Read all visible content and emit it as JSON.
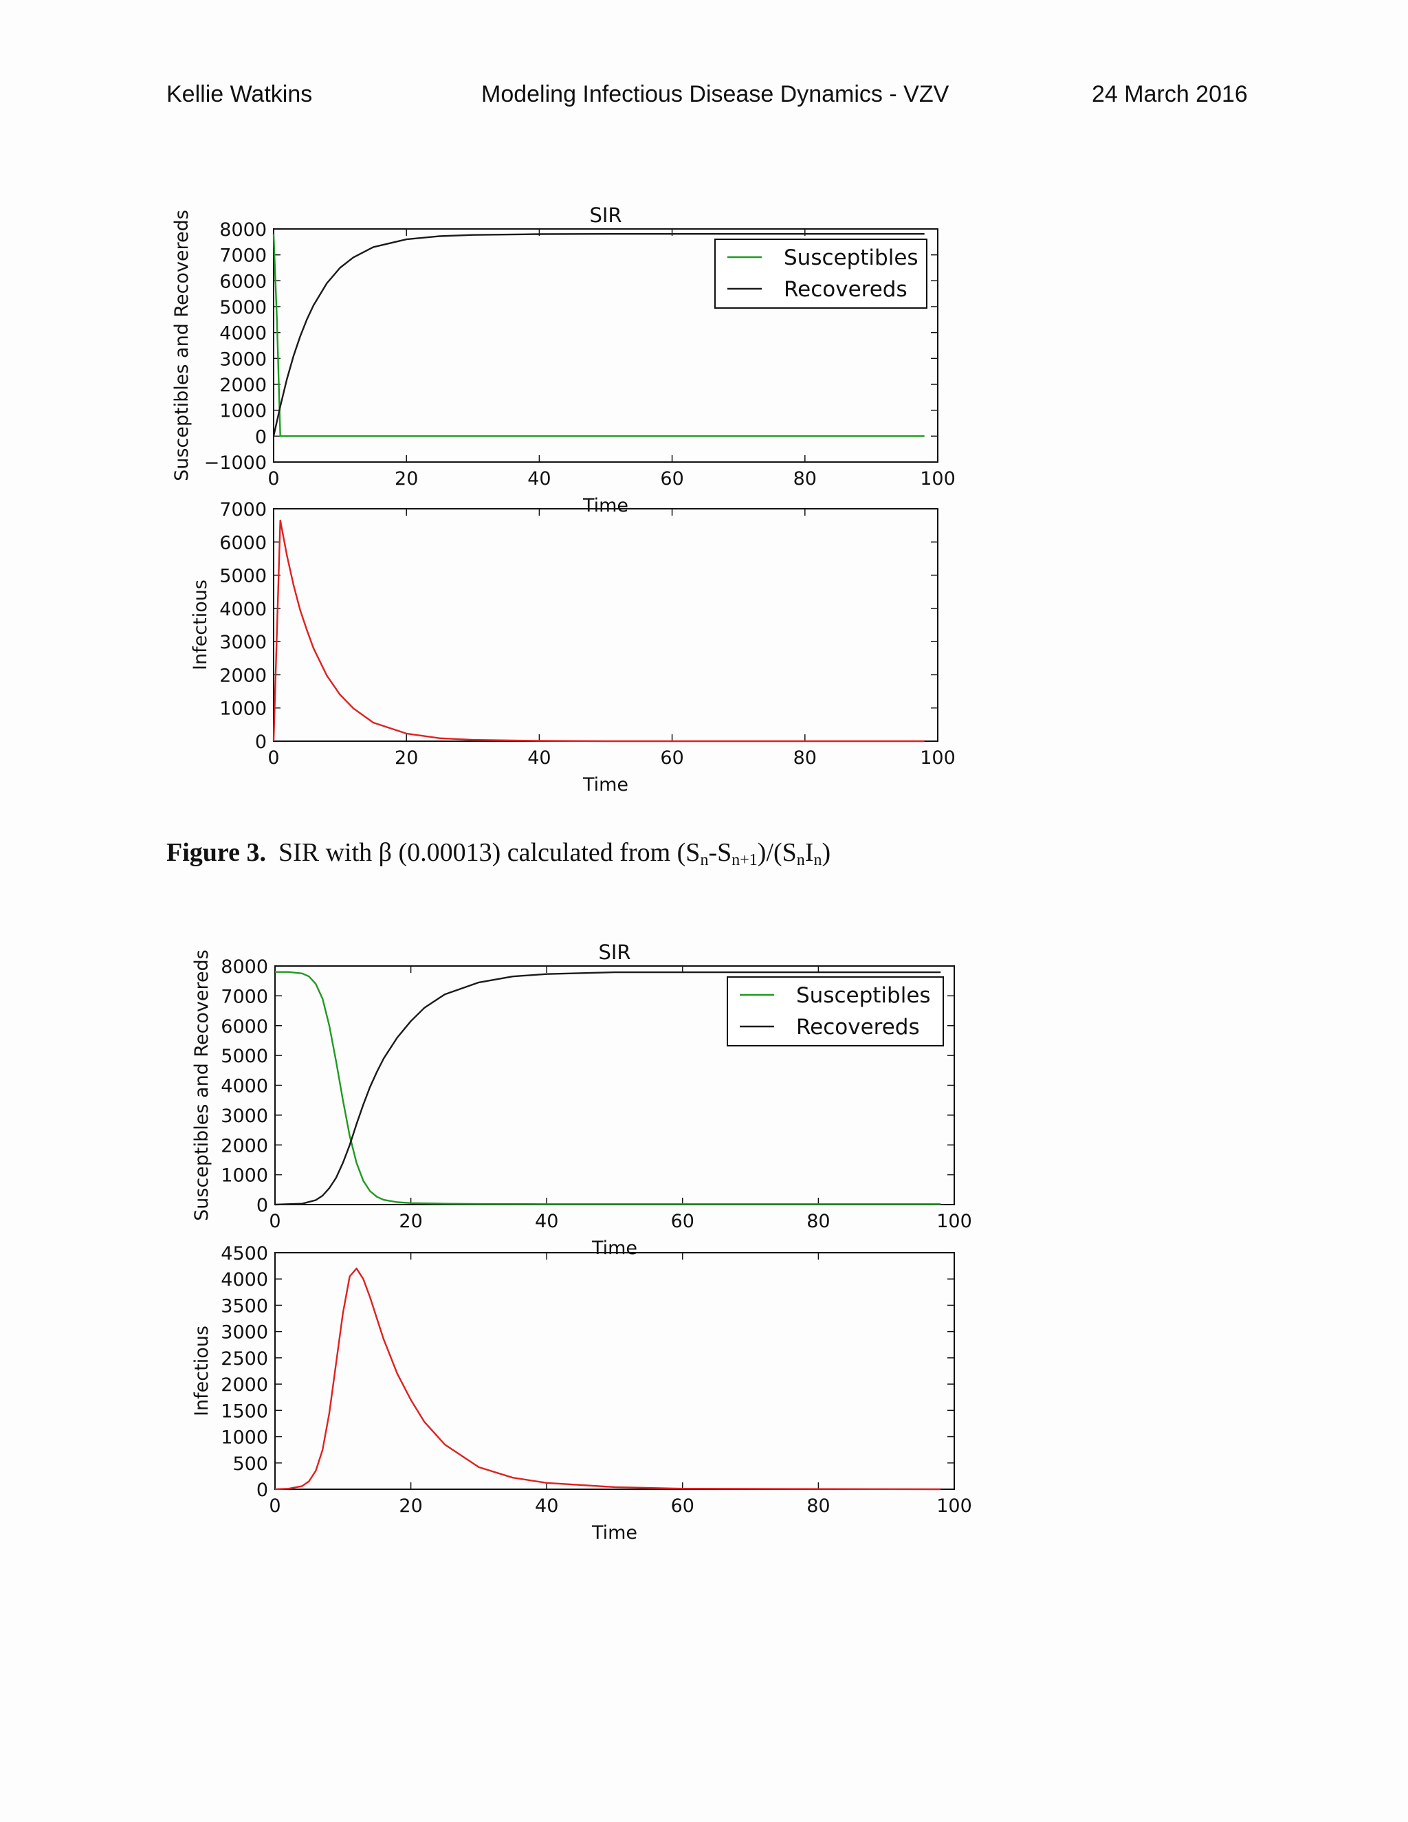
{
  "header": {
    "author": "Kellie Watkins",
    "title": "Modeling Infectious Disease Dynamics - VZV",
    "date": "24 March 2016"
  },
  "caption": {
    "label": "Figure 3.",
    "text_main": "SIR with β (0.00013) calculated from (S",
    "sub_n1": "n",
    "dash_s": "-S",
    "sub_n2": "n+1",
    "mid": ")/(S",
    "sub_n3": "n",
    "i": "I",
    "sub_n4": "n",
    "close": ")"
  },
  "colors": {
    "susceptibles": "#1f9a1f",
    "recovereds": "#1a1a1a",
    "infectious": "#e02020"
  },
  "chart_data": [
    {
      "type": "line",
      "title": "SIR",
      "xlabel": "Time",
      "ylabel": "Susceptibles and Recovereds",
      "xlim": [
        0,
        100
      ],
      "ylim": [
        -1000,
        8000
      ],
      "xticks": [
        0,
        20,
        40,
        60,
        80,
        100
      ],
      "yticks": [
        -1000,
        0,
        1000,
        2000,
        3000,
        4000,
        5000,
        6000,
        7000,
        8000
      ],
      "legend": "top-right",
      "series": [
        {
          "name": "Susceptibles",
          "color": "#1f9a1f",
          "x": [
            0,
            0.5,
            1,
            2,
            98
          ],
          "y": [
            7800,
            4500,
            0,
            0,
            0
          ]
        },
        {
          "name": "Recovereds",
          "color": "#1a1a1a",
          "x": [
            0,
            1,
            2,
            3,
            4,
            5,
            6,
            8,
            10,
            12,
            15,
            20,
            25,
            30,
            40,
            50,
            98
          ],
          "y": [
            0,
            1150,
            2200,
            3100,
            3850,
            4500,
            5050,
            5900,
            6500,
            6900,
            7300,
            7600,
            7720,
            7770,
            7800,
            7810,
            7810
          ]
        }
      ]
    },
    {
      "type": "line",
      "title": "",
      "xlabel": "Time",
      "ylabel": "Infectious",
      "xlim": [
        0,
        100
      ],
      "ylim": [
        0,
        7000
      ],
      "xticks": [
        0,
        20,
        40,
        60,
        80,
        100
      ],
      "yticks": [
        0,
        1000,
        2000,
        3000,
        4000,
        5000,
        6000,
        7000
      ],
      "series": [
        {
          "color": "#e02020",
          "x": [
            0,
            1,
            2,
            3,
            4,
            5,
            6,
            8,
            10,
            12,
            15,
            20,
            25,
            30,
            40,
            50,
            98
          ],
          "y": [
            0,
            6650,
            5600,
            4700,
            3950,
            3350,
            2800,
            1980,
            1400,
            990,
            560,
            230,
            90,
            40,
            10,
            0,
            0
          ]
        }
      ]
    },
    {
      "type": "line",
      "title": "SIR",
      "xlabel": "Time",
      "ylabel": "Susceptibles and Recovereds",
      "xlim": [
        0,
        100
      ],
      "ylim": [
        0,
        8000
      ],
      "xticks": [
        0,
        20,
        40,
        60,
        80,
        100
      ],
      "yticks": [
        0,
        1000,
        2000,
        3000,
        4000,
        5000,
        6000,
        7000,
        8000
      ],
      "legend": "top-right",
      "series": [
        {
          "name": "Susceptibles",
          "color": "#1f9a1f",
          "x": [
            0,
            2,
            4,
            5,
            6,
            7,
            8,
            9,
            10,
            11,
            12,
            13,
            14,
            15,
            16,
            18,
            20,
            25,
            30,
            40,
            98
          ],
          "y": [
            7800,
            7800,
            7750,
            7650,
            7400,
            6900,
            6000,
            4800,
            3500,
            2300,
            1400,
            800,
            450,
            260,
            160,
            80,
            50,
            30,
            20,
            15,
            15
          ]
        },
        {
          "name": "Recovereds",
          "color": "#1a1a1a",
          "x": [
            0,
            4,
            6,
            7,
            8,
            9,
            10,
            11,
            12,
            13,
            14,
            15,
            16,
            18,
            20,
            22,
            25,
            30,
            35,
            40,
            50,
            98
          ],
          "y": [
            0,
            30,
            150,
            300,
            550,
            900,
            1400,
            2000,
            2700,
            3350,
            3950,
            4450,
            4900,
            5600,
            6150,
            6600,
            7050,
            7450,
            7650,
            7730,
            7790,
            7790
          ]
        }
      ]
    },
    {
      "type": "line",
      "title": "",
      "xlabel": "Time",
      "ylabel": "Infectious",
      "xlim": [
        0,
        100
      ],
      "ylim": [
        0,
        4500
      ],
      "xticks": [
        0,
        20,
        40,
        60,
        80,
        100
      ],
      "yticks": [
        0,
        500,
        1000,
        1500,
        2000,
        2500,
        3000,
        3500,
        4000,
        4500
      ],
      "series": [
        {
          "color": "#e02020",
          "x": [
            0,
            2,
            4,
            5,
            6,
            7,
            8,
            9,
            10,
            11,
            12,
            13,
            14,
            15,
            16,
            18,
            20,
            22,
            25,
            30,
            35,
            40,
            50,
            60,
            98
          ],
          "y": [
            0,
            10,
            60,
            150,
            350,
            750,
            1450,
            2400,
            3350,
            4050,
            4200,
            4000,
            3650,
            3250,
            2850,
            2200,
            1700,
            1280,
            850,
            420,
            220,
            120,
            40,
            10,
            0
          ]
        }
      ]
    }
  ]
}
